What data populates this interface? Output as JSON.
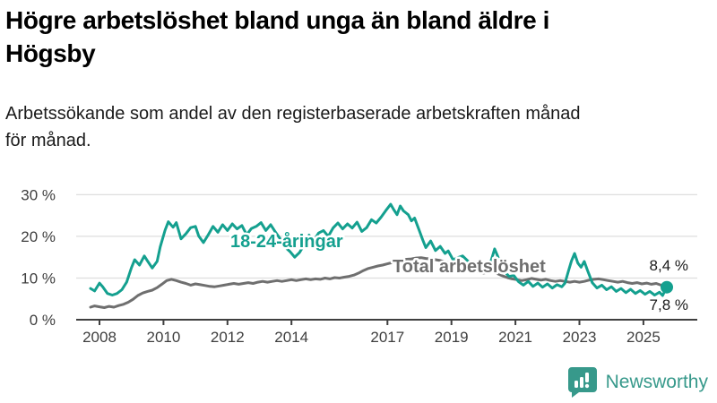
{
  "header": {
    "title_line1": "Högre arbetslöshet bland unga än bland äldre i",
    "title_line2": "Högsby",
    "subtitle_line1": "Arbetssökande som andel av den registerbaserade arbetskraften månad",
    "subtitle_line2": "för månad."
  },
  "branding": {
    "logo_icon": "newsworthy-speech-bubble-bar-chart-icon",
    "logo_text": "Newsworthy",
    "logo_color": "#37998b"
  },
  "chart_data": {
    "type": "line",
    "title": "Högre arbetslöshet bland unga än bland äldre i Högsby",
    "subtitle": "Arbetssökande som andel av den registerbaserade arbetskraften månad för månad.",
    "grid": "horizontal",
    "legend_position": "inline-labels",
    "x_axis": {
      "range": [
        2007.7,
        2026.6
      ],
      "ticks": [
        2008,
        2010,
        2012,
        2014,
        2017,
        2019,
        2021,
        2023,
        2025
      ],
      "tick_labels": [
        "2008",
        "2010",
        "2012",
        "2014",
        "2017",
        "2019",
        "2021",
        "2023",
        "2025"
      ]
    },
    "y_axis": {
      "range": [
        0,
        30
      ],
      "unit": "%",
      "tick_values": [
        30,
        20,
        10,
        0
      ],
      "tick_labels": [
        "30 %",
        "20 %",
        "10 %",
        "0 %"
      ]
    },
    "colors": {
      "grid": "#dedede",
      "axis": "#3f3f3f",
      "tick_text": "#3f3f3f"
    },
    "series": [
      {
        "name": "Total arbetslöshet",
        "color": "#6f6f6f",
        "end_label": "8,4 %",
        "end_value": 8.4,
        "end_dot": false,
        "points": [
          [
            2007.72,
            3.0
          ],
          [
            2007.85,
            3.3
          ],
          [
            2008.0,
            3.1
          ],
          [
            2008.15,
            2.9
          ],
          [
            2008.3,
            3.2
          ],
          [
            2008.45,
            3.0
          ],
          [
            2008.6,
            3.4
          ],
          [
            2008.75,
            3.7
          ],
          [
            2008.9,
            4.2
          ],
          [
            2009.05,
            4.9
          ],
          [
            2009.2,
            5.8
          ],
          [
            2009.35,
            6.4
          ],
          [
            2009.5,
            6.8
          ],
          [
            2009.65,
            7.1
          ],
          [
            2009.8,
            7.7
          ],
          [
            2009.95,
            8.5
          ],
          [
            2010.1,
            9.4
          ],
          [
            2010.25,
            9.7
          ],
          [
            2010.4,
            9.4
          ],
          [
            2010.55,
            9.0
          ],
          [
            2010.7,
            8.7
          ],
          [
            2010.85,
            8.3
          ],
          [
            2011.0,
            8.6
          ],
          [
            2011.15,
            8.4
          ],
          [
            2011.3,
            8.2
          ],
          [
            2011.45,
            8.0
          ],
          [
            2011.6,
            7.9
          ],
          [
            2011.75,
            8.1
          ],
          [
            2011.9,
            8.3
          ],
          [
            2012.05,
            8.5
          ],
          [
            2012.2,
            8.7
          ],
          [
            2012.35,
            8.5
          ],
          [
            2012.5,
            8.7
          ],
          [
            2012.65,
            8.9
          ],
          [
            2012.8,
            8.7
          ],
          [
            2012.95,
            9.0
          ],
          [
            2013.1,
            9.2
          ],
          [
            2013.25,
            9.0
          ],
          [
            2013.4,
            9.2
          ],
          [
            2013.55,
            9.4
          ],
          [
            2013.7,
            9.2
          ],
          [
            2013.85,
            9.4
          ],
          [
            2014.0,
            9.6
          ],
          [
            2014.15,
            9.4
          ],
          [
            2014.3,
            9.6
          ],
          [
            2014.45,
            9.8
          ],
          [
            2014.6,
            9.6
          ],
          [
            2014.75,
            9.8
          ],
          [
            2014.9,
            9.7
          ],
          [
            2015.05,
            10.0
          ],
          [
            2015.2,
            9.8
          ],
          [
            2015.35,
            10.1
          ],
          [
            2015.5,
            10.0
          ],
          [
            2015.65,
            10.2
          ],
          [
            2015.8,
            10.4
          ],
          [
            2015.95,
            10.7
          ],
          [
            2016.1,
            11.2
          ],
          [
            2016.25,
            11.8
          ],
          [
            2016.4,
            12.3
          ],
          [
            2016.55,
            12.6
          ],
          [
            2016.7,
            12.9
          ],
          [
            2016.85,
            13.1
          ],
          [
            2017.0,
            13.4
          ],
          [
            2017.15,
            13.7
          ],
          [
            2017.3,
            14.0
          ],
          [
            2017.45,
            14.3
          ],
          [
            2017.6,
            14.5
          ],
          [
            2017.75,
            14.6
          ],
          [
            2017.9,
            14.8
          ],
          [
            2018.05,
            14.9
          ],
          [
            2018.2,
            14.7
          ],
          [
            2018.35,
            14.6
          ],
          [
            2018.5,
            14.4
          ],
          [
            2018.65,
            14.2
          ],
          [
            2018.8,
            13.9
          ],
          [
            2018.95,
            13.6
          ],
          [
            2019.1,
            13.2
          ],
          [
            2019.25,
            12.9
          ],
          [
            2019.4,
            12.5
          ],
          [
            2019.55,
            12.2
          ],
          [
            2019.7,
            11.8
          ],
          [
            2019.85,
            11.5
          ],
          [
            2020.0,
            11.2
          ],
          [
            2020.15,
            11.4
          ],
          [
            2020.3,
            11.6
          ],
          [
            2020.45,
            11.0
          ],
          [
            2020.6,
            10.5
          ],
          [
            2020.75,
            10.1
          ],
          [
            2020.9,
            9.8
          ],
          [
            2021.05,
            9.6
          ],
          [
            2021.2,
            9.4
          ],
          [
            2021.35,
            9.6
          ],
          [
            2021.5,
            9.9
          ],
          [
            2021.65,
            9.7
          ],
          [
            2021.8,
            9.5
          ],
          [
            2021.95,
            9.7
          ],
          [
            2022.1,
            9.4
          ],
          [
            2022.25,
            9.2
          ],
          [
            2022.4,
            9.4
          ],
          [
            2022.55,
            9.2
          ],
          [
            2022.7,
            9.0
          ],
          [
            2022.85,
            9.2
          ],
          [
            2023.0,
            9.0
          ],
          [
            2023.15,
            9.2
          ],
          [
            2023.3,
            9.5
          ],
          [
            2023.45,
            9.7
          ],
          [
            2023.6,
            9.8
          ],
          [
            2023.75,
            9.6
          ],
          [
            2023.9,
            9.4
          ],
          [
            2024.05,
            9.2
          ],
          [
            2024.2,
            9.0
          ],
          [
            2024.35,
            9.2
          ],
          [
            2024.5,
            8.9
          ],
          [
            2024.65,
            8.7
          ],
          [
            2024.8,
            8.9
          ],
          [
            2024.95,
            8.6
          ],
          [
            2025.1,
            8.8
          ],
          [
            2025.25,
            8.5
          ],
          [
            2025.4,
            8.7
          ],
          [
            2025.55,
            8.3
          ],
          [
            2025.73,
            8.4
          ]
        ]
      },
      {
        "name": "18-24-åringar",
        "color": "#14a08f",
        "end_label": "7,8 %",
        "end_value": 7.8,
        "end_dot": true,
        "points": [
          [
            2007.72,
            7.5
          ],
          [
            2007.85,
            6.9
          ],
          [
            2008.0,
            8.8
          ],
          [
            2008.1,
            7.9
          ],
          [
            2008.25,
            6.3
          ],
          [
            2008.4,
            5.9
          ],
          [
            2008.55,
            6.3
          ],
          [
            2008.7,
            7.2
          ],
          [
            2008.85,
            9.0
          ],
          [
            2009.0,
            12.5
          ],
          [
            2009.1,
            14.4
          ],
          [
            2009.25,
            13.1
          ],
          [
            2009.4,
            15.3
          ],
          [
            2009.5,
            14.1
          ],
          [
            2009.65,
            12.4
          ],
          [
            2009.8,
            14.0
          ],
          [
            2009.9,
            17.5
          ],
          [
            2010.05,
            21.5
          ],
          [
            2010.15,
            23.5
          ],
          [
            2010.3,
            22.2
          ],
          [
            2010.4,
            23.3
          ],
          [
            2010.55,
            19.4
          ],
          [
            2010.7,
            20.6
          ],
          [
            2010.85,
            22.1
          ],
          [
            2011.0,
            22.4
          ],
          [
            2011.1,
            20.1
          ],
          [
            2011.25,
            18.5
          ],
          [
            2011.4,
            20.4
          ],
          [
            2011.55,
            22.4
          ],
          [
            2011.7,
            21.0
          ],
          [
            2011.85,
            22.8
          ],
          [
            2012.0,
            21.4
          ],
          [
            2012.15,
            23.0
          ],
          [
            2012.3,
            21.8
          ],
          [
            2012.45,
            22.6
          ],
          [
            2012.6,
            20.4
          ],
          [
            2012.75,
            21.9
          ],
          [
            2012.9,
            22.4
          ],
          [
            2013.05,
            23.3
          ],
          [
            2013.2,
            21.4
          ],
          [
            2013.35,
            22.8
          ],
          [
            2013.5,
            21.0
          ],
          [
            2013.65,
            19.4
          ],
          [
            2013.8,
            17.4
          ],
          [
            2013.95,
            16.4
          ],
          [
            2014.1,
            15.0
          ],
          [
            2014.25,
            16.1
          ],
          [
            2014.4,
            18.0
          ],
          [
            2014.55,
            20.3
          ],
          [
            2014.7,
            19.0
          ],
          [
            2014.85,
            20.8
          ],
          [
            2015.0,
            21.4
          ],
          [
            2015.15,
            20.0
          ],
          [
            2015.3,
            22.0
          ],
          [
            2015.45,
            23.2
          ],
          [
            2015.6,
            21.8
          ],
          [
            2015.75,
            23.0
          ],
          [
            2015.9,
            22.0
          ],
          [
            2016.05,
            23.4
          ],
          [
            2016.2,
            21.2
          ],
          [
            2016.35,
            22.1
          ],
          [
            2016.5,
            24.0
          ],
          [
            2016.65,
            23.2
          ],
          [
            2016.8,
            24.6
          ],
          [
            2016.95,
            26.2
          ],
          [
            2017.1,
            27.7
          ],
          [
            2017.2,
            26.4
          ],
          [
            2017.3,
            25.2
          ],
          [
            2017.4,
            27.3
          ],
          [
            2017.5,
            26.1
          ],
          [
            2017.65,
            25.2
          ],
          [
            2017.75,
            23.7
          ],
          [
            2017.85,
            24.4
          ],
          [
            2018.0,
            21.3
          ],
          [
            2018.1,
            19.2
          ],
          [
            2018.2,
            17.3
          ],
          [
            2018.35,
            18.9
          ],
          [
            2018.5,
            16.6
          ],
          [
            2018.65,
            17.6
          ],
          [
            2018.8,
            15.9
          ],
          [
            2018.9,
            16.5
          ],
          [
            2019.05,
            14.4
          ],
          [
            2019.2,
            14.9
          ],
          [
            2019.35,
            15.3
          ],
          [
            2019.5,
            14.2
          ],
          [
            2019.65,
            13.1
          ],
          [
            2019.8,
            12.2
          ],
          [
            2019.95,
            12.8
          ],
          [
            2020.1,
            12.0
          ],
          [
            2020.25,
            14.4
          ],
          [
            2020.35,
            17.0
          ],
          [
            2020.5,
            14.2
          ],
          [
            2020.65,
            11.6
          ],
          [
            2020.8,
            10.4
          ],
          [
            2020.95,
            10.6
          ],
          [
            2021.1,
            9.1
          ],
          [
            2021.25,
            8.3
          ],
          [
            2021.4,
            9.2
          ],
          [
            2021.55,
            8.0
          ],
          [
            2021.7,
            8.8
          ],
          [
            2021.85,
            7.8
          ],
          [
            2022.0,
            8.6
          ],
          [
            2022.15,
            7.6
          ],
          [
            2022.3,
            8.4
          ],
          [
            2022.45,
            7.9
          ],
          [
            2022.55,
            8.8
          ],
          [
            2022.65,
            11.5
          ],
          [
            2022.75,
            14.1
          ],
          [
            2022.85,
            15.9
          ],
          [
            2022.95,
            13.6
          ],
          [
            2023.05,
            12.6
          ],
          [
            2023.15,
            14.0
          ],
          [
            2023.25,
            11.9
          ],
          [
            2023.4,
            8.9
          ],
          [
            2023.55,
            7.6
          ],
          [
            2023.7,
            8.3
          ],
          [
            2023.85,
            7.2
          ],
          [
            2024.0,
            7.9
          ],
          [
            2024.15,
            6.8
          ],
          [
            2024.3,
            7.5
          ],
          [
            2024.45,
            6.5
          ],
          [
            2024.6,
            7.3
          ],
          [
            2024.75,
            6.3
          ],
          [
            2024.9,
            7.0
          ],
          [
            2025.05,
            6.1
          ],
          [
            2025.2,
            6.8
          ],
          [
            2025.35,
            5.9
          ],
          [
            2025.5,
            6.6
          ],
          [
            2025.6,
            5.8
          ],
          [
            2025.73,
            7.8
          ]
        ]
      }
    ]
  }
}
